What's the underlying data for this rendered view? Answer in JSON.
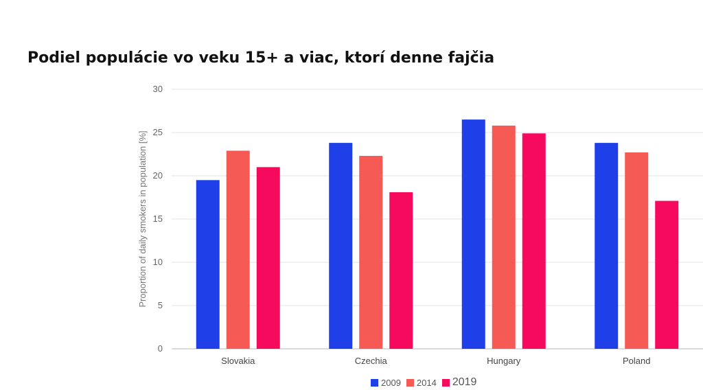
{
  "title": "Podiel populácie vo veku 15+ a viac, ktorí denne fajčia",
  "chart_data": {
    "type": "bar",
    "title": "Podiel populácie vo veku 15+ a viac, ktorí denne fajčia",
    "xlabel": "",
    "ylabel": "Proportion of daily smokers in population [%]",
    "ylim": [
      0,
      30
    ],
    "yticks": [
      0,
      5,
      10,
      15,
      20,
      25,
      30
    ],
    "grid": true,
    "legend_position": "bottom",
    "categories": [
      "Slovakia",
      "Czechia",
      "Hungary",
      "Poland"
    ],
    "series": [
      {
        "name": "2009",
        "color": "#1f3fe8",
        "values": [
          19.5,
          23.8,
          26.5,
          23.8
        ]
      },
      {
        "name": "2014",
        "color": "#f55a55",
        "values": [
          22.9,
          22.3,
          25.8,
          22.7
        ]
      },
      {
        "name": "2019",
        "color": "#f50a5e",
        "values": [
          21.0,
          18.1,
          24.9,
          17.1
        ]
      }
    ]
  }
}
